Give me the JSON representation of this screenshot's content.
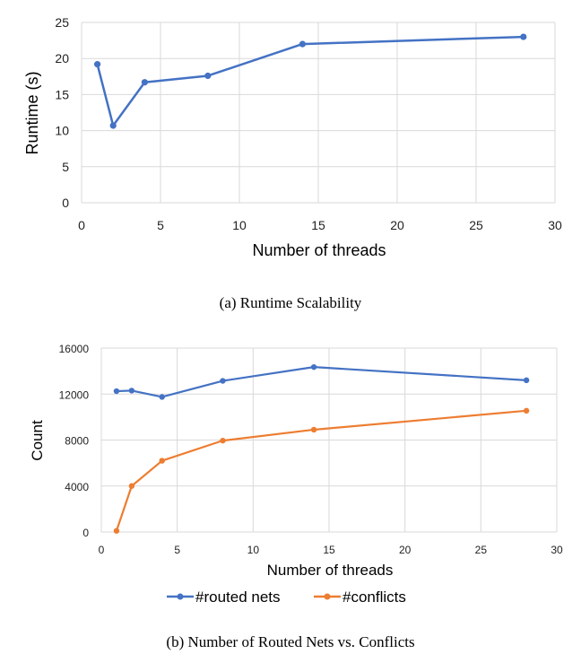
{
  "chart_data": [
    {
      "type": "line",
      "caption": "(a) Runtime Scalability",
      "xlabel": "Number of threads",
      "ylabel": "Runtime (s)",
      "xlim": [
        0,
        30
      ],
      "ylim": [
        0,
        25
      ],
      "xticks": [
        0,
        5,
        10,
        15,
        20,
        25,
        30
      ],
      "yticks": [
        0,
        5,
        10,
        15,
        20,
        25
      ],
      "grid": true,
      "series": [
        {
          "color": "#4472C4",
          "x": [
            1,
            2,
            4,
            8,
            14,
            28
          ],
          "y": [
            19.2,
            10.7,
            16.7,
            17.6,
            22.0,
            23.0
          ]
        }
      ]
    },
    {
      "type": "line",
      "caption": "(b) Number of Routed Nets vs. Conflicts",
      "xlabel": "Number of threads",
      "ylabel": "Count",
      "xlim": [
        0,
        30
      ],
      "ylim": [
        0,
        16000
      ],
      "xticks": [
        0,
        5,
        10,
        15,
        20,
        25,
        30
      ],
      "yticks": [
        0,
        4000,
        8000,
        12000,
        16000
      ],
      "grid": true,
      "legend": "bottom",
      "series": [
        {
          "name": "#routed nets",
          "color": "#4472C4",
          "x": [
            1,
            2,
            4,
            8,
            14,
            28
          ],
          "y": [
            12250,
            12300,
            11750,
            13150,
            14350,
            13200
          ]
        },
        {
          "name": "#conflicts",
          "color": "#ED7D31",
          "x": [
            1,
            2,
            4,
            8,
            14,
            28
          ],
          "y": [
            100,
            4000,
            6200,
            7950,
            8900,
            10550
          ]
        }
      ]
    }
  ]
}
